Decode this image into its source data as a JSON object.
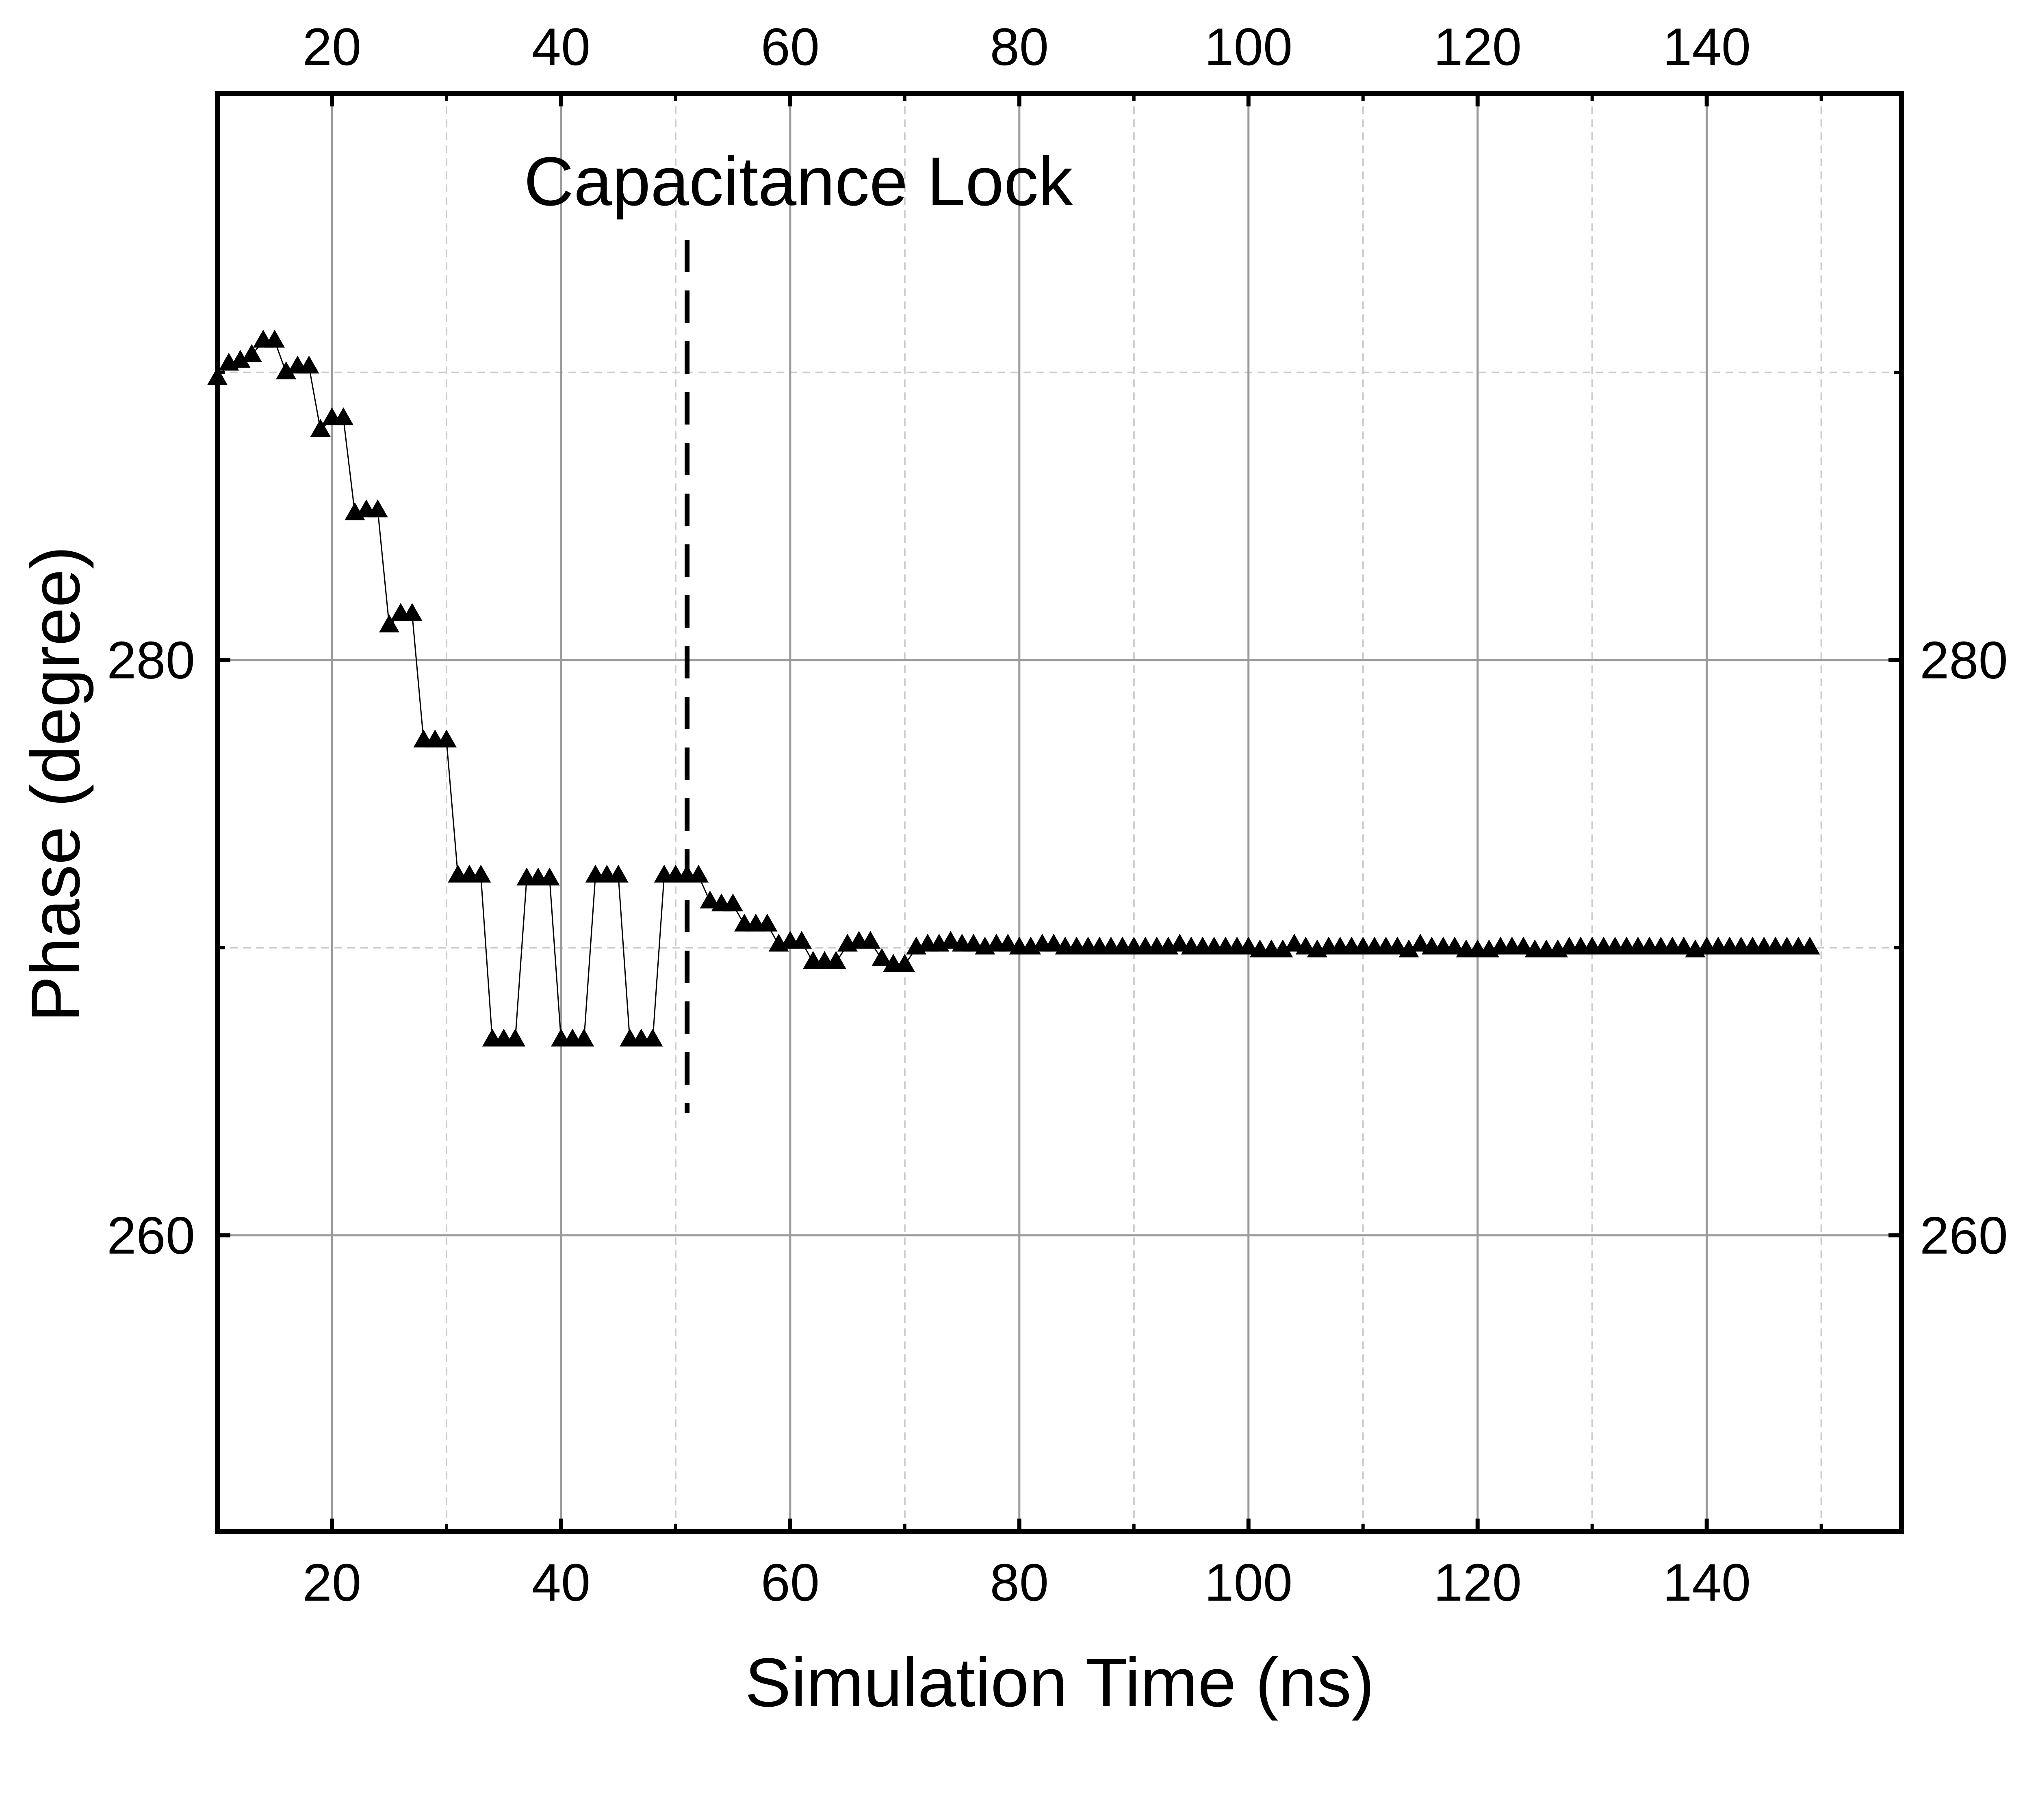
{
  "chart_data": {
    "type": "line",
    "title": "",
    "xlabel": "Simulation Time (ns)",
    "ylabel": "Phase (degree)",
    "xlim": [
      10,
      157
    ],
    "ylim": [
      249.7,
      299.7
    ],
    "x_ticks": [
      20,
      40,
      60,
      80,
      100,
      120,
      140
    ],
    "x_tick_labels": [
      "20",
      "40",
      "60",
      "80",
      "100",
      "120",
      "140"
    ],
    "x_minor_ticks": [
      30,
      50,
      70,
      90,
      110,
      130,
      150
    ],
    "y_ticks": [
      260,
      280
    ],
    "y_tick_labels": [
      "260",
      "280"
    ],
    "y_minor_ticks": [
      270,
      290
    ],
    "grid": true,
    "legend": "none",
    "marker": "triangle-up",
    "colors": {
      "series": "#000000",
      "major_grid": "#9a9a9a",
      "minor_grid": "#cccccc"
    },
    "annotation": {
      "text": "Capacitance Lock",
      "x": 51
    },
    "series": [
      {
        "x": [
          10,
          11,
          12,
          13,
          14,
          15,
          16,
          17,
          18,
          19,
          20,
          21,
          22,
          23,
          24,
          25,
          26,
          27,
          28,
          29,
          30,
          31,
          32,
          33,
          34,
          35,
          36,
          37,
          38,
          39,
          40,
          41,
          42,
          43,
          44,
          45,
          46,
          47,
          48,
          49,
          50,
          51,
          52,
          53,
          54,
          55,
          56,
          57,
          58,
          59,
          60,
          61,
          62,
          63,
          64,
          65,
          66,
          67,
          68,
          69,
          70,
          71,
          72,
          73,
          74,
          75,
          76,
          77,
          78,
          79,
          80,
          81,
          82,
          83,
          84,
          85,
          86,
          87,
          88,
          89,
          90,
          91,
          92,
          93,
          94,
          95,
          96,
          97,
          98,
          99,
          100,
          101,
          102,
          103,
          104,
          105,
          106,
          107,
          108,
          109,
          110,
          111,
          112,
          113,
          114,
          115,
          116,
          117,
          118,
          119,
          120,
          121,
          122,
          123,
          124,
          125,
          126,
          127,
          128,
          129,
          130,
          131,
          132,
          133,
          134,
          135,
          136,
          137,
          138,
          139,
          140,
          141,
          142,
          143,
          144,
          145,
          146,
          147,
          148,
          149
        ],
        "y": [
          289.8,
          290.3,
          290.4,
          290.6,
          291.1,
          291.1,
          290.0,
          290.2,
          290.2,
          288.0,
          288.4,
          288.4,
          285.1,
          285.2,
          285.2,
          281.2,
          281.6,
          281.6,
          277.2,
          277.2,
          277.2,
          272.5,
          272.5,
          272.5,
          266.8,
          266.8,
          266.8,
          272.4,
          272.4,
          272.4,
          266.8,
          266.8,
          266.8,
          272.5,
          272.5,
          272.5,
          266.8,
          266.8,
          266.8,
          272.5,
          272.5,
          272.5,
          272.5,
          271.6,
          271.5,
          271.5,
          270.8,
          270.8,
          270.8,
          270.1,
          270.2,
          270.2,
          269.5,
          269.5,
          269.5,
          270.1,
          270.2,
          270.2,
          269.6,
          269.4,
          269.4,
          270.0,
          270.1,
          270.1,
          270.2,
          270.1,
          270.1,
          270.0,
          270.1,
          270.1,
          270.0,
          270.0,
          270.1,
          270.1,
          270.0,
          270.0,
          270.0,
          270.0,
          270.0,
          270.0,
          270.0,
          270.0,
          270.0,
          270.0,
          270.1,
          270.0,
          270.0,
          270.0,
          270.0,
          270.0,
          270.0,
          269.9,
          269.9,
          269.9,
          270.1,
          270.0,
          269.9,
          270.0,
          270.0,
          270.0,
          270.0,
          270.0,
          270.0,
          270.0,
          269.9,
          270.1,
          270.0,
          270.0,
          270.0,
          269.9,
          269.9,
          269.9,
          270.0,
          270.0,
          270.0,
          269.9,
          269.9,
          269.9,
          270.0,
          270.0,
          270.0,
          270.0,
          270.0,
          270.0,
          270.0,
          270.0,
          270.0,
          270.0,
          270.0,
          269.9,
          270.0,
          270.0,
          270.0,
          270.0,
          270.0,
          270.0,
          270.0,
          270.0,
          270.0,
          270.0
        ]
      }
    ]
  }
}
